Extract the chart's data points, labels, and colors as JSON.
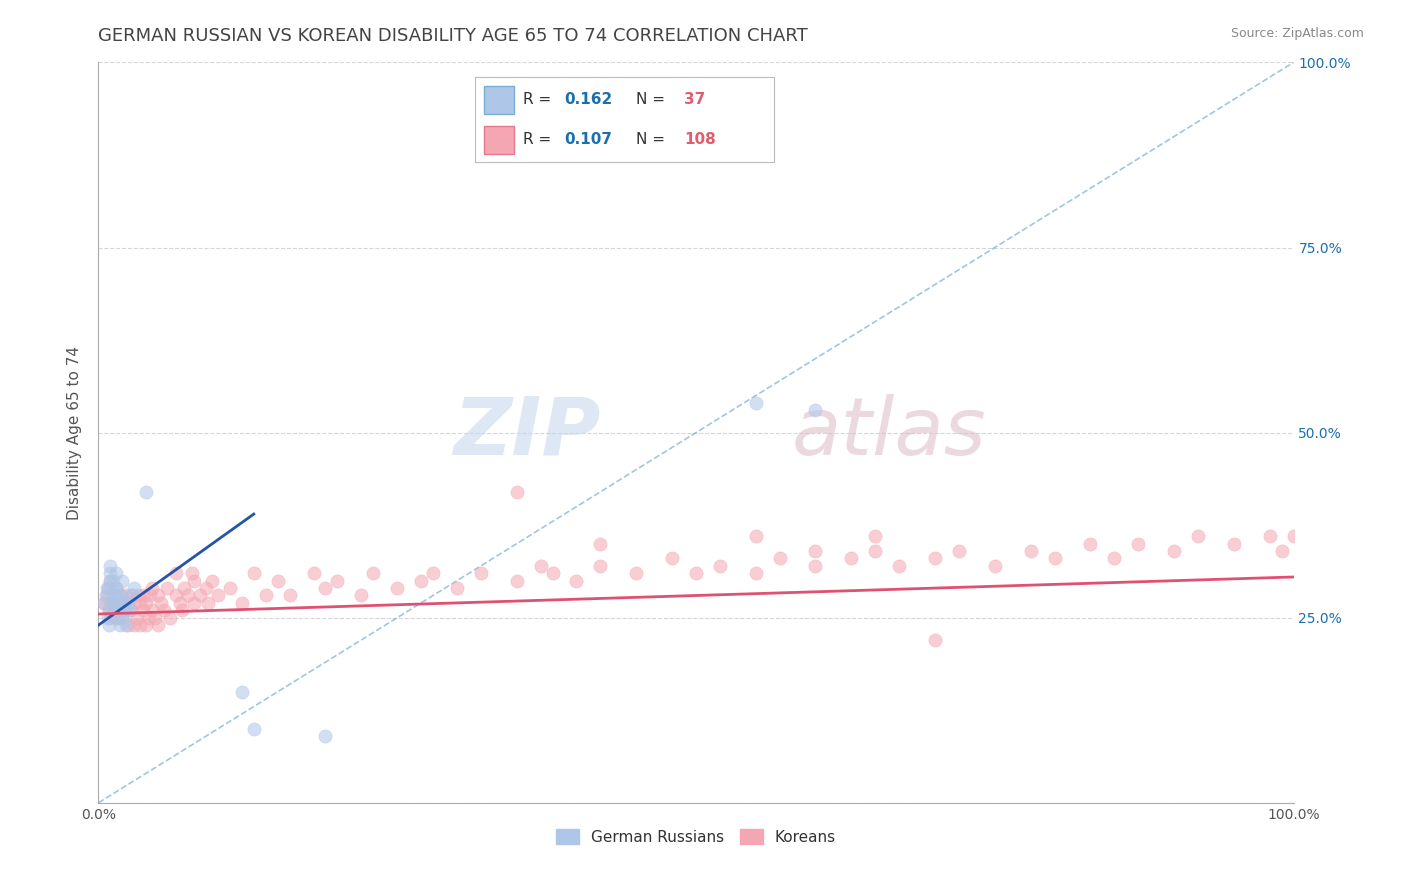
{
  "title": "GERMAN RUSSIAN VS KOREAN DISABILITY AGE 65 TO 74 CORRELATION CHART",
  "source": "Source: ZipAtlas.com",
  "ylabel": "Disability Age 65 to 74",
  "xlim": [
    0,
    1
  ],
  "ylim": [
    0,
    1
  ],
  "watermark_zip": "ZIP",
  "watermark_atlas": "atlas",
  "legend_entries": [
    {
      "label": "German Russians",
      "color": "#aec6e8",
      "edge": "#7aadd4",
      "R": "0.162",
      "N": "37"
    },
    {
      "label": "Koreans",
      "color": "#f4a7b2",
      "edge": "#e07a8a",
      "R": "0.107",
      "N": "108"
    }
  ],
  "blue_scatter_x": [
    0.005,
    0.006,
    0.007,
    0.008,
    0.009,
    0.009,
    0.01,
    0.01,
    0.01,
    0.01,
    0.012,
    0.012,
    0.013,
    0.014,
    0.015,
    0.015,
    0.015,
    0.016,
    0.016,
    0.017,
    0.018,
    0.019,
    0.02,
    0.02,
    0.021,
    0.022,
    0.023,
    0.025,
    0.026,
    0.028,
    0.03,
    0.04,
    0.12,
    0.13,
    0.19,
    0.55,
    0.6
  ],
  "blue_scatter_y": [
    0.27,
    0.28,
    0.29,
    0.25,
    0.24,
    0.26,
    0.3,
    0.31,
    0.32,
    0.29,
    0.27,
    0.3,
    0.28,
    0.26,
    0.27,
    0.29,
    0.31,
    0.28,
    0.25,
    0.27,
    0.24,
    0.28,
    0.25,
    0.3,
    0.26,
    0.27,
    0.24,
    0.27,
    0.26,
    0.28,
    0.29,
    0.42,
    0.15,
    0.1,
    0.09,
    0.54,
    0.53
  ],
  "pink_scatter_x": [
    0.005,
    0.007,
    0.008,
    0.009,
    0.01,
    0.01,
    0.01,
    0.012,
    0.013,
    0.015,
    0.015,
    0.015,
    0.017,
    0.018,
    0.02,
    0.02,
    0.022,
    0.023,
    0.025,
    0.025,
    0.027,
    0.028,
    0.03,
    0.03,
    0.032,
    0.033,
    0.035,
    0.035,
    0.037,
    0.038,
    0.04,
    0.04,
    0.042,
    0.043,
    0.045,
    0.045,
    0.047,
    0.05,
    0.05,
    0.052,
    0.055,
    0.057,
    0.06,
    0.065,
    0.065,
    0.068,
    0.07,
    0.072,
    0.075,
    0.078,
    0.08,
    0.08,
    0.085,
    0.09,
    0.092,
    0.095,
    0.1,
    0.11,
    0.12,
    0.13,
    0.14,
    0.15,
    0.16,
    0.18,
    0.19,
    0.2,
    0.22,
    0.23,
    0.25,
    0.27,
    0.28,
    0.3,
    0.32,
    0.35,
    0.37,
    0.38,
    0.4,
    0.42,
    0.45,
    0.48,
    0.5,
    0.52,
    0.55,
    0.57,
    0.6,
    0.63,
    0.65,
    0.67,
    0.7,
    0.72,
    0.75,
    0.78,
    0.8,
    0.83,
    0.85,
    0.87,
    0.9,
    0.92,
    0.95,
    0.98,
    0.99,
    1.0,
    0.42,
    0.55,
    0.6,
    0.65,
    0.7,
    0.35
  ],
  "pink_scatter_y": [
    0.27,
    0.28,
    0.29,
    0.26,
    0.25,
    0.27,
    0.3,
    0.26,
    0.27,
    0.25,
    0.27,
    0.29,
    0.26,
    0.28,
    0.25,
    0.27,
    0.26,
    0.28,
    0.24,
    0.27,
    0.26,
    0.28,
    0.24,
    0.27,
    0.25,
    0.28,
    0.24,
    0.27,
    0.26,
    0.28,
    0.24,
    0.27,
    0.25,
    0.28,
    0.26,
    0.29,
    0.25,
    0.28,
    0.24,
    0.27,
    0.26,
    0.29,
    0.25,
    0.28,
    0.31,
    0.27,
    0.26,
    0.29,
    0.28,
    0.31,
    0.27,
    0.3,
    0.28,
    0.29,
    0.27,
    0.3,
    0.28,
    0.29,
    0.27,
    0.31,
    0.28,
    0.3,
    0.28,
    0.31,
    0.29,
    0.3,
    0.28,
    0.31,
    0.29,
    0.3,
    0.31,
    0.29,
    0.31,
    0.3,
    0.32,
    0.31,
    0.3,
    0.32,
    0.31,
    0.33,
    0.31,
    0.32,
    0.31,
    0.33,
    0.32,
    0.33,
    0.34,
    0.32,
    0.33,
    0.34,
    0.32,
    0.34,
    0.33,
    0.35,
    0.33,
    0.35,
    0.34,
    0.36,
    0.35,
    0.36,
    0.34,
    0.36,
    0.35,
    0.36,
    0.34,
    0.36,
    0.22,
    0.42
  ],
  "blue_line_x": [
    0.0,
    0.13
  ],
  "blue_line_y": [
    0.24,
    0.39
  ],
  "pink_line_x": [
    0.0,
    1.0
  ],
  "pink_line_y": [
    0.255,
    0.305
  ],
  "ref_line_x": [
    0.0,
    1.0
  ],
  "ref_line_y": [
    0.0,
    1.0
  ],
  "scatter_size": 90,
  "scatter_alpha": 0.55,
  "line_width": 2.0,
  "background_color": "#ffffff",
  "grid_color": "#cccccc",
  "title_color": "#444444",
  "title_fontsize": 13,
  "axis_label_color": "#555555",
  "tick_color": "#1a6faf",
  "legend_fontsize": 11,
  "r_color": "#1a6faf",
  "n_color": "#e05c6e"
}
